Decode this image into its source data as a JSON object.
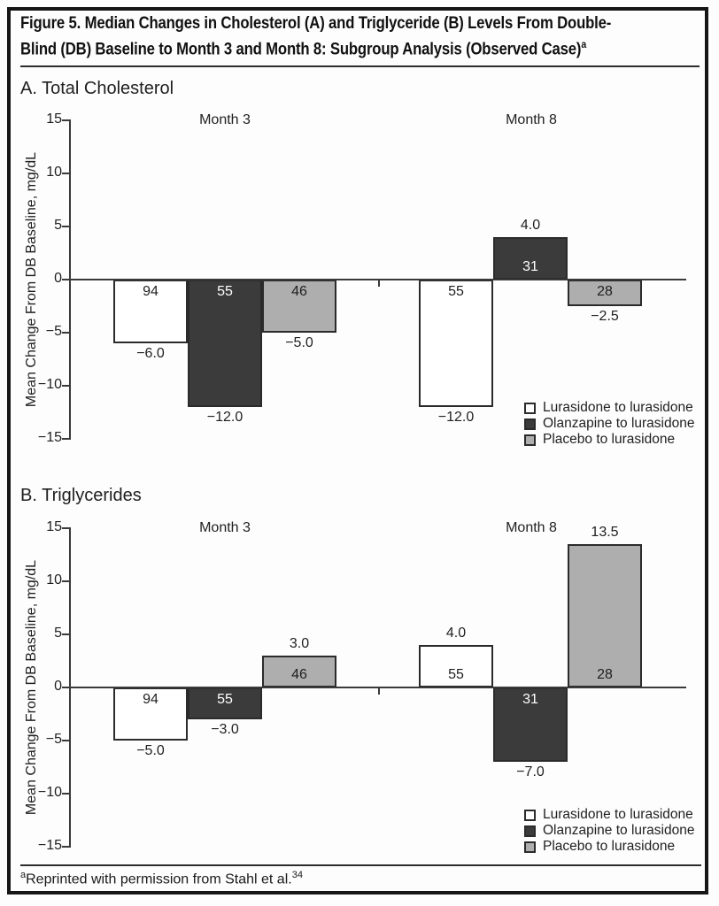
{
  "figure": {
    "title": {
      "line1": "Figure 5. Median Changes in Cholesterol (A) and Triglyceride (B) Levels From Double-",
      "line2": "Blind (DB) Baseline to Month 3 and Month 8: Subgroup Analysis (Observed Case)",
      "superscript": "a"
    },
    "footnote": {
      "superscript": "a",
      "text": "Reprinted with permission from Stahl et al.",
      "ref": "34"
    }
  },
  "colors": {
    "lurasidone_fill": "#ffffff",
    "olanzapine_fill": "#3b3b3b",
    "placebo_fill": "#aeaeae",
    "bar_border": "#2b2b2b",
    "axis": "#3a3a3a",
    "text": "#1f1f1f"
  },
  "series": [
    {
      "name": "Lurasidone to lurasidone",
      "fill": "#ffffff",
      "n_label_color": "#1f1f1f"
    },
    {
      "name": "Olanzapine to lurasidone",
      "fill": "#3b3b3b",
      "n_label_color": "#ffffff"
    },
    {
      "name": "Placebo to lurasidone",
      "fill": "#aeaeae",
      "n_label_color": "#1f1f1f"
    }
  ],
  "chart_data": [
    {
      "type": "bar",
      "panel_label": "A. Total Cholesterol",
      "ylabel": "Mean Change From DB Baseline, mg/dL",
      "ylim": [
        -15,
        15
      ],
      "grid": false,
      "yticks": [
        {
          "value": 15,
          "label": "15"
        },
        {
          "value": 10,
          "label": "10"
        },
        {
          "value": 5,
          "label": "5"
        },
        {
          "value": 0,
          "label": "0"
        },
        {
          "value": -5,
          "label": "−5"
        },
        {
          "value": -10,
          "label": "−10"
        },
        {
          "value": -15,
          "label": "−15"
        }
      ],
      "legend_position": "bottom-right",
      "legend": [
        "Lurasidone to lurasidone",
        "Olanzapine to lurasidone",
        "Placebo to lurasidone"
      ],
      "groups": [
        {
          "label": "Month 3",
          "bars": [
            {
              "series": "Lurasidone to lurasidone",
              "n": 94,
              "value": -6.0,
              "value_label": "−6.0"
            },
            {
              "series": "Olanzapine to lurasidone",
              "n": 55,
              "value": -12.0,
              "value_label": "−12.0"
            },
            {
              "series": "Placebo to lurasidone",
              "n": 46,
              "value": -5.0,
              "value_label": "−5.0"
            }
          ]
        },
        {
          "label": "Month 8",
          "bars": [
            {
              "series": "Lurasidone to lurasidone",
              "n": 55,
              "value": -12.0,
              "value_label": "−12.0"
            },
            {
              "series": "Olanzapine to lurasidone",
              "n": 31,
              "value": 4.0,
              "value_label": "4.0"
            },
            {
              "series": "Placebo to lurasidone",
              "n": 28,
              "value": -2.5,
              "value_label": "−2.5"
            }
          ]
        }
      ]
    },
    {
      "type": "bar",
      "panel_label": "B. Triglycerides",
      "ylabel": "Mean Change From DB Baseline, mg/dL",
      "ylim": [
        -15,
        15
      ],
      "grid": false,
      "yticks": [
        {
          "value": 15,
          "label": "15"
        },
        {
          "value": 10,
          "label": "10"
        },
        {
          "value": 5,
          "label": "5"
        },
        {
          "value": 0,
          "label": "0"
        },
        {
          "value": -5,
          "label": "−5"
        },
        {
          "value": -10,
          "label": "−10"
        },
        {
          "value": -15,
          "label": "−15"
        }
      ],
      "legend_position": "bottom-right",
      "legend": [
        "Lurasidone to lurasidone",
        "Olanzapine to lurasidone",
        "Placebo to lurasidone"
      ],
      "groups": [
        {
          "label": "Month 3",
          "bars": [
            {
              "series": "Lurasidone to lurasidone",
              "n": 94,
              "value": -5.0,
              "value_label": "−5.0"
            },
            {
              "series": "Olanzapine to lurasidone",
              "n": 55,
              "value": -3.0,
              "value_label": "−3.0"
            },
            {
              "series": "Placebo to lurasidone",
              "n": 46,
              "value": 3.0,
              "value_label": "3.0"
            }
          ]
        },
        {
          "label": "Month 8",
          "bars": [
            {
              "series": "Lurasidone to lurasidone",
              "n": 55,
              "value": 4.0,
              "value_label": "4.0"
            },
            {
              "series": "Olanzapine to lurasidone",
              "n": 31,
              "value": -7.0,
              "value_label": "−7.0"
            },
            {
              "series": "Placebo to lurasidone",
              "n": 28,
              "value": 13.5,
              "value_label": "13.5"
            }
          ]
        }
      ]
    }
  ]
}
